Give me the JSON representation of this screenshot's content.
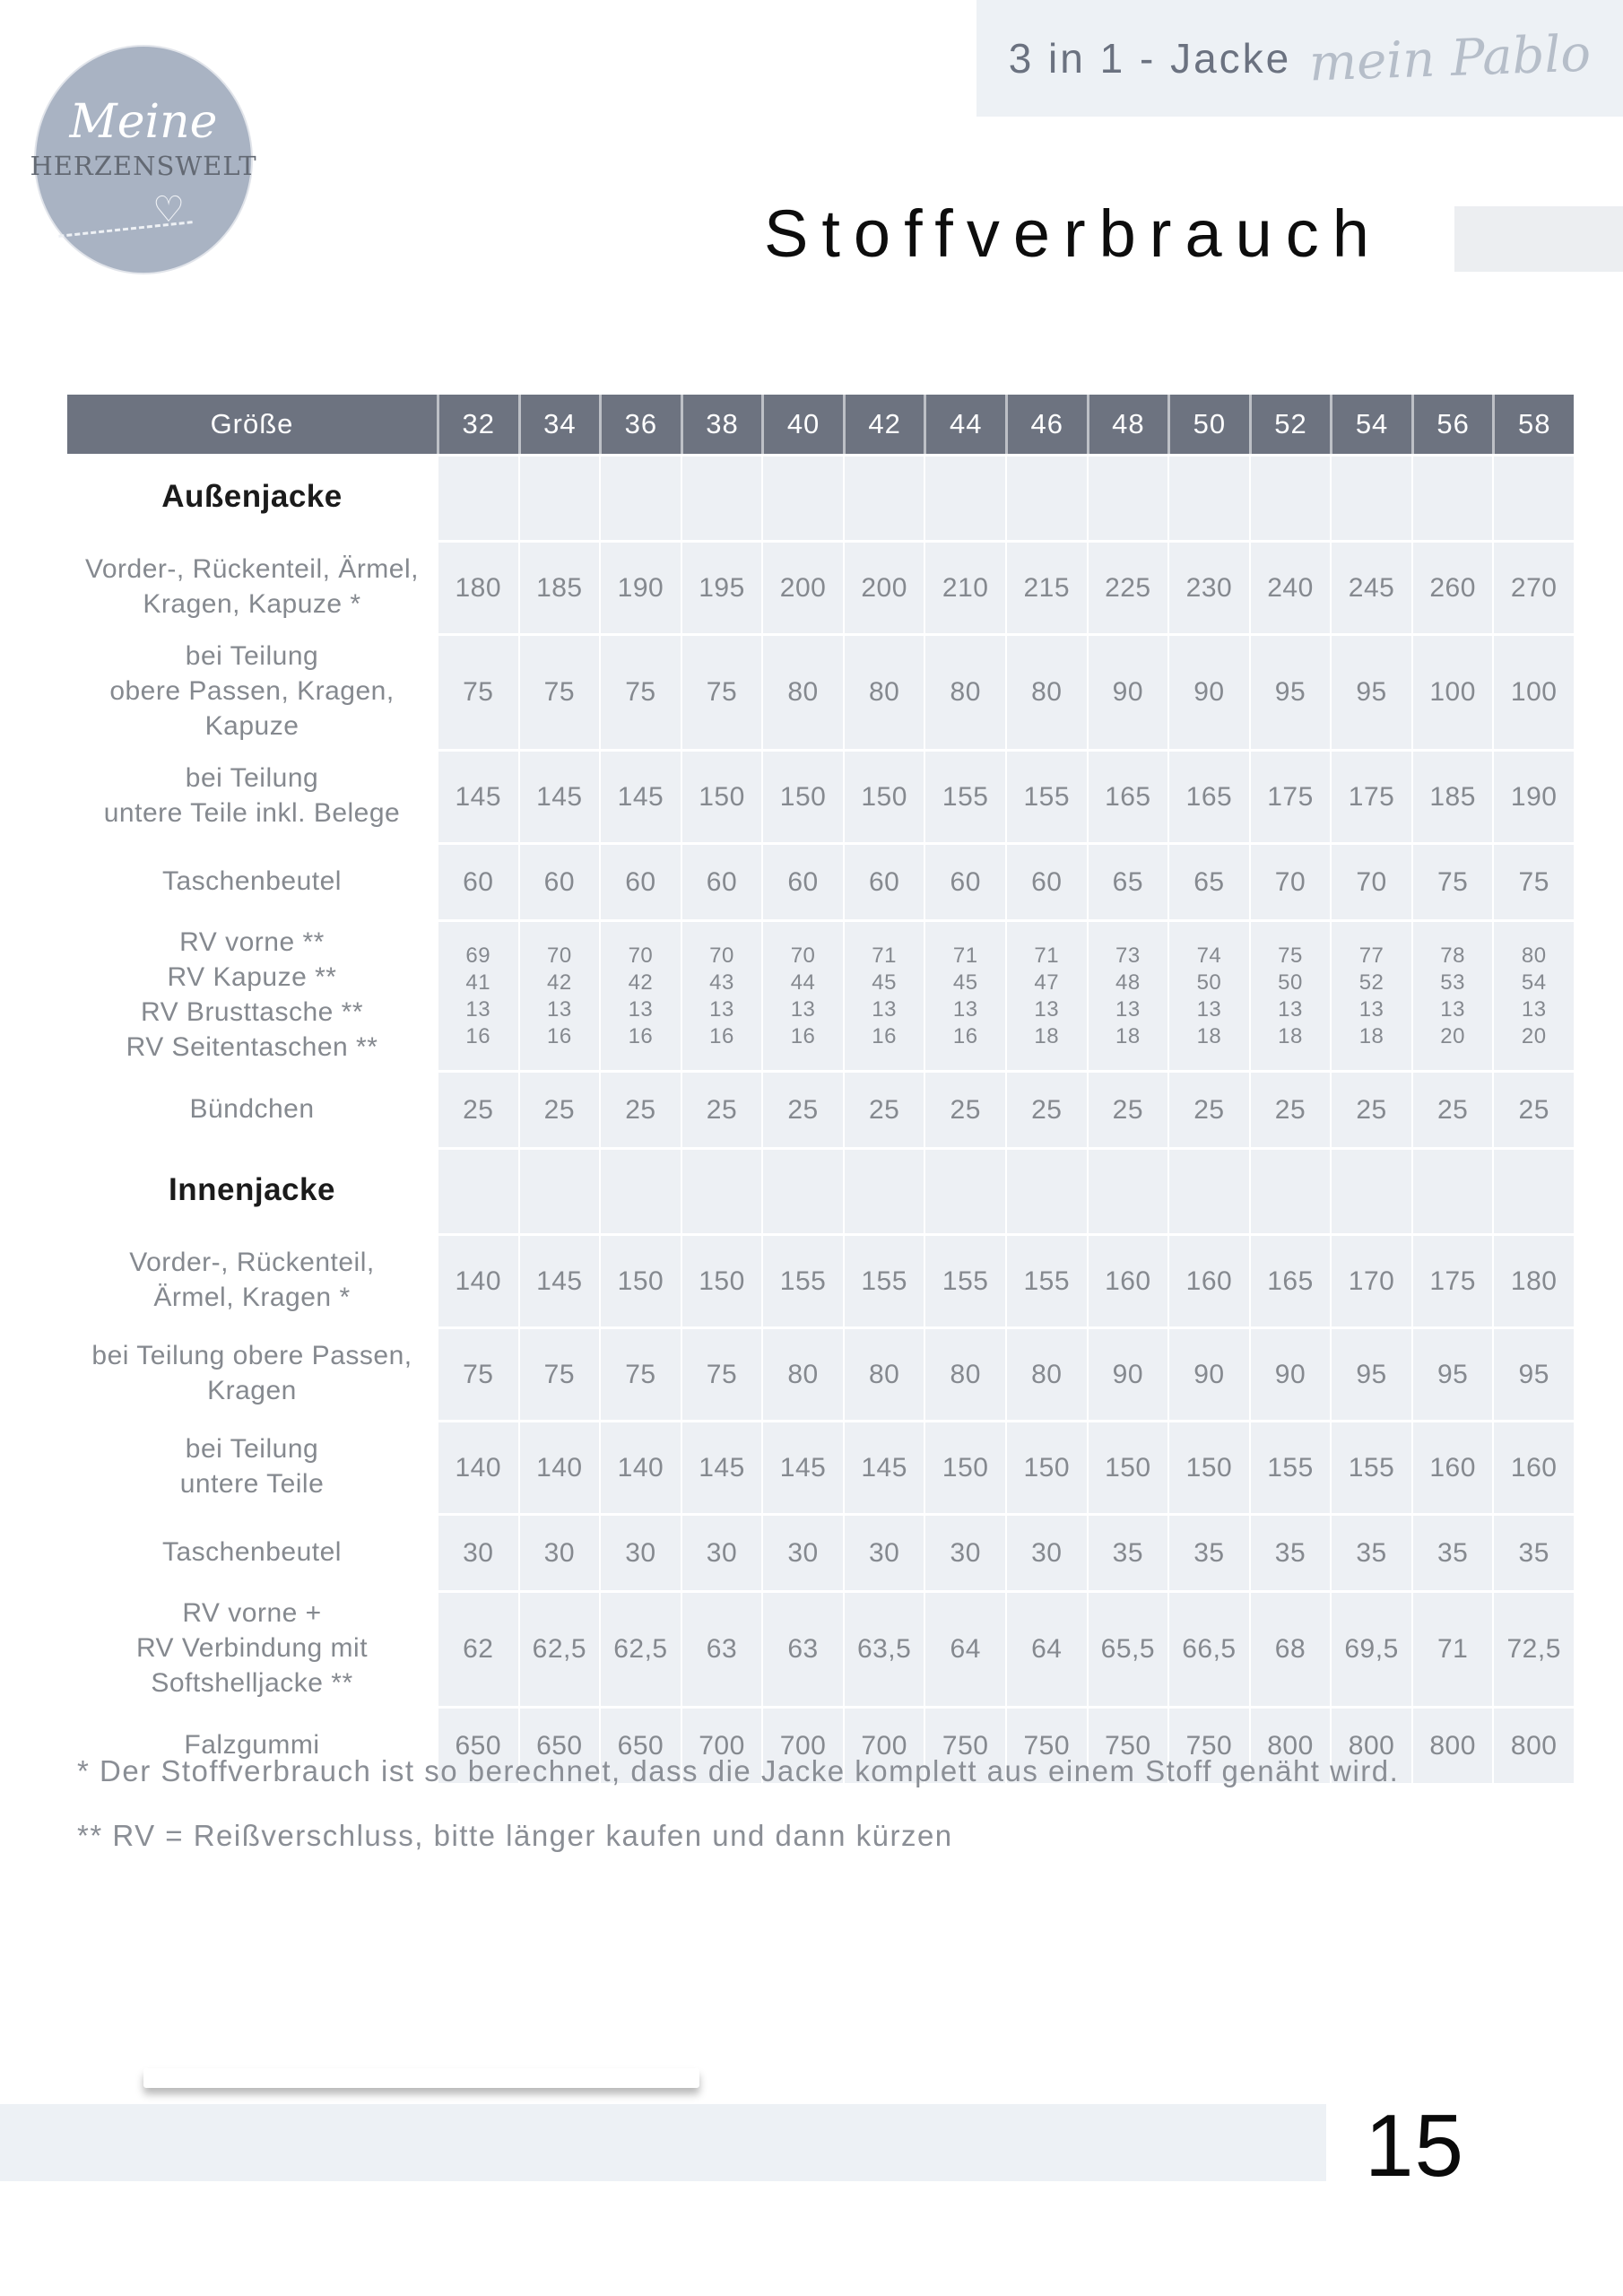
{
  "logo": {
    "line1": "Meine",
    "line2": "HERZENSWELT",
    "heart_icon": "♡"
  },
  "header_band": {
    "title": "3 in 1 - Jacke",
    "subtitle": "mein Pablo"
  },
  "page_title": "Stoffverbrauch",
  "table": {
    "size_label": "Größe",
    "sizes": [
      "32",
      "34",
      "36",
      "38",
      "40",
      "42",
      "44",
      "46",
      "48",
      "50",
      "52",
      "54",
      "56",
      "58"
    ],
    "rows": [
      {
        "type": "section",
        "label": "Außenjacke"
      },
      {
        "type": "data",
        "label_lines": [
          "Vorder-, Rückenteil, Ärmel,",
          "Kragen, Kapuze *"
        ],
        "values": [
          "180",
          "185",
          "190",
          "195",
          "200",
          "200",
          "210",
          "215",
          "225",
          "230",
          "240",
          "245",
          "260",
          "270"
        ]
      },
      {
        "type": "data",
        "label_lines": [
          "bei Teilung",
          "obere Passen, Kragen,",
          "Kapuze"
        ],
        "values": [
          "75",
          "75",
          "75",
          "75",
          "80",
          "80",
          "80",
          "80",
          "90",
          "90",
          "95",
          "95",
          "100",
          "100"
        ]
      },
      {
        "type": "data",
        "label_lines": [
          "bei Teilung",
          "untere Teile inkl. Belege"
        ],
        "values": [
          "145",
          "145",
          "145",
          "150",
          "150",
          "150",
          "155",
          "155",
          "165",
          "165",
          "175",
          "175",
          "185",
          "190"
        ]
      },
      {
        "type": "data",
        "label_lines": [
          "Taschenbeutel"
        ],
        "values": [
          "60",
          "60",
          "60",
          "60",
          "60",
          "60",
          "60",
          "60",
          "65",
          "65",
          "70",
          "70",
          "75",
          "75"
        ]
      },
      {
        "type": "data",
        "label_lines": [
          "RV vorne **",
          "RV Kapuze **",
          "RV Brusttasche **",
          "RV Seitentaschen **"
        ],
        "values": [
          [
            "69",
            "41",
            "13",
            "16"
          ],
          [
            "70",
            "42",
            "13",
            "16"
          ],
          [
            "70",
            "42",
            "13",
            "16"
          ],
          [
            "70",
            "43",
            "13",
            "16"
          ],
          [
            "70",
            "44",
            "13",
            "16"
          ],
          [
            "71",
            "45",
            "13",
            "16"
          ],
          [
            "71",
            "45",
            "13",
            "16"
          ],
          [
            "71",
            "47",
            "13",
            "18"
          ],
          [
            "73",
            "48",
            "13",
            "18"
          ],
          [
            "74",
            "50",
            "13",
            "18"
          ],
          [
            "75",
            "50",
            "13",
            "18"
          ],
          [
            "77",
            "52",
            "13",
            "18"
          ],
          [
            "78",
            "53",
            "13",
            "20"
          ],
          [
            "80",
            "54",
            "13",
            "20"
          ]
        ]
      },
      {
        "type": "data",
        "label_lines": [
          "Bündchen"
        ],
        "values": [
          "25",
          "25",
          "25",
          "25",
          "25",
          "25",
          "25",
          "25",
          "25",
          "25",
          "25",
          "25",
          "25",
          "25"
        ]
      },
      {
        "type": "section",
        "label": "Innenjacke"
      },
      {
        "type": "data",
        "label_lines": [
          "Vorder-, Rückenteil,",
          "Ärmel, Kragen *"
        ],
        "values": [
          "140",
          "145",
          "150",
          "150",
          "155",
          "155",
          "155",
          "155",
          "160",
          "160",
          "165",
          "170",
          "175",
          "180"
        ]
      },
      {
        "type": "data",
        "label_lines": [
          "bei Teilung obere Passen,",
          "Kragen"
        ],
        "values": [
          "75",
          "75",
          "75",
          "75",
          "80",
          "80",
          "80",
          "80",
          "90",
          "90",
          "90",
          "95",
          "95",
          "95"
        ]
      },
      {
        "type": "data",
        "label_lines": [
          "bei Teilung",
          "untere Teile"
        ],
        "values": [
          "140",
          "140",
          "140",
          "145",
          "145",
          "145",
          "150",
          "150",
          "150",
          "150",
          "155",
          "155",
          "160",
          "160"
        ]
      },
      {
        "type": "data",
        "label_lines": [
          "Taschenbeutel"
        ],
        "values": [
          "30",
          "30",
          "30",
          "30",
          "30",
          "30",
          "30",
          "30",
          "35",
          "35",
          "35",
          "35",
          "35",
          "35"
        ]
      },
      {
        "type": "data",
        "label_lines": [
          "RV vorne +",
          "RV Verbindung mit",
          "Softshelljacke **"
        ],
        "values": [
          "62",
          "62,5",
          "62,5",
          "63",
          "63",
          "63,5",
          "64",
          "64",
          "65,5",
          "66,5",
          "68",
          "69,5",
          "71",
          "72,5"
        ]
      },
      {
        "type": "data",
        "label_lines": [
          "Falzgummi"
        ],
        "values": [
          "650",
          "650",
          "650",
          "700",
          "700",
          "700",
          "750",
          "750",
          "750",
          "750",
          "800",
          "800",
          "800",
          "800"
        ]
      }
    ]
  },
  "footnotes": [
    "* Der Stoffverbrauch ist so berechnet, dass die Jacke komplett aus einem Stoff genäht wird.",
    "** RV = Reißverschluss, bitte länger kaufen und dann kürzen"
  ],
  "page_number": "15",
  "colors": {
    "table_header_bg": "#6d7380",
    "cell_bg": "#edf0f4",
    "band_bg": "#edf1f5",
    "logo_bg": "#a9b3c3",
    "muted_text": "#85898f"
  }
}
